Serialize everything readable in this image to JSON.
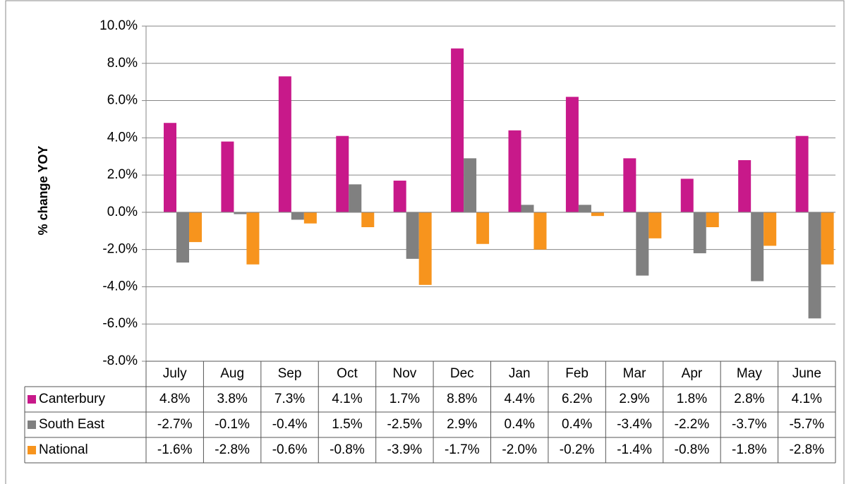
{
  "chart_data": {
    "type": "bar",
    "y_label": "% change YOY",
    "categories": [
      "July",
      "Aug",
      "Sep",
      "Oct",
      "Nov",
      "Dec",
      "Jan",
      "Feb",
      "Mar",
      "Apr",
      "May",
      "June"
    ],
    "series": [
      {
        "name": "Canterbury",
        "color": "#c8198a",
        "values": [
          4.8,
          3.8,
          7.3,
          4.1,
          1.7,
          8.8,
          4.4,
          6.2,
          2.9,
          1.8,
          2.8,
          4.1
        ],
        "value_labels": [
          "4.8%",
          "3.8%",
          "7.3%",
          "4.1%",
          "1.7%",
          "8.8%",
          "4.4%",
          "6.2%",
          "2.9%",
          "1.8%",
          "2.8%",
          "4.1%"
        ]
      },
      {
        "name": "South East",
        "color": "#808080",
        "values": [
          -2.7,
          -0.1,
          -0.4,
          1.5,
          -2.5,
          2.9,
          0.4,
          0.4,
          -3.4,
          -2.2,
          -3.7,
          -5.7
        ],
        "value_labels": [
          "-2.7%",
          "-0.1%",
          "-0.4%",
          "1.5%",
          "-2.5%",
          "2.9%",
          "0.4%",
          "0.4%",
          "-3.4%",
          "-2.2%",
          "-3.7%",
          "-5.7%"
        ]
      },
      {
        "name": "National",
        "color": "#f7941d",
        "values": [
          -1.6,
          -2.8,
          -0.6,
          -0.8,
          -3.9,
          -1.7,
          -2.0,
          -0.2,
          -1.4,
          -0.8,
          -1.8,
          -2.8
        ],
        "value_labels": [
          "-1.6%",
          "-2.8%",
          "-0.6%",
          "-0.8%",
          "-3.9%",
          "-1.7%",
          "-2.0%",
          "-0.2%",
          "-1.4%",
          "-0.8%",
          "-1.8%",
          "-2.8%"
        ]
      }
    ],
    "ylim": [
      -8,
      10
    ],
    "yticks": [
      {
        "value": -8,
        "label": "-8.0%"
      },
      {
        "value": -6,
        "label": "-6.0%"
      },
      {
        "value": -4,
        "label": "-4.0%"
      },
      {
        "value": -2,
        "label": "-2.0%"
      },
      {
        "value": 0,
        "label": "0.0%"
      },
      {
        "value": 2,
        "label": "2.0%"
      },
      {
        "value": 4,
        "label": "4.0%"
      },
      {
        "value": 6,
        "label": "6.0%"
      },
      {
        "value": 8,
        "label": "8.0%"
      },
      {
        "value": 10,
        "label": "10.0%"
      }
    ],
    "grid": true
  }
}
